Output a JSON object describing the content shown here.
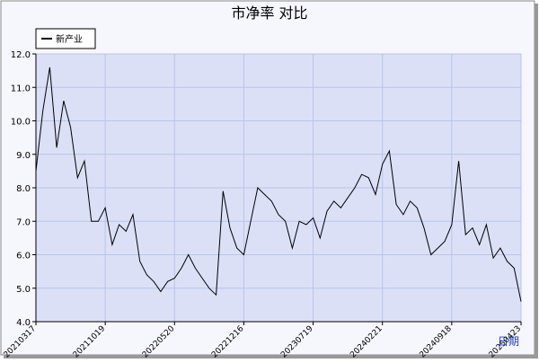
{
  "chart_data": {
    "type": "line",
    "title": "市净率  对比",
    "x_label": "日期",
    "categories": [
      "20210317",
      null,
      null,
      null,
      null,
      null,
      null,
      null,
      null,
      null,
      "20211019",
      null,
      null,
      null,
      null,
      null,
      null,
      null,
      null,
      null,
      "20220520",
      null,
      null,
      null,
      null,
      null,
      null,
      null,
      null,
      null,
      "20221216",
      null,
      null,
      null,
      null,
      null,
      null,
      null,
      null,
      null,
      "20230719",
      null,
      null,
      null,
      null,
      null,
      null,
      null,
      null,
      null,
      "20240221",
      null,
      null,
      null,
      null,
      null,
      null,
      null,
      null,
      null,
      "20240918",
      null,
      null,
      null,
      null,
      null,
      null,
      null,
      null,
      null,
      "20250423"
    ],
    "series": [
      {
        "name": "新产业",
        "color": "#000000",
        "values": [
          8.5,
          10.3,
          11.6,
          9.2,
          10.6,
          9.8,
          8.3,
          8.8,
          7.0,
          7.0,
          7.4,
          6.3,
          6.9,
          6.7,
          7.2,
          5.8,
          5.4,
          5.2,
          4.9,
          5.2,
          5.3,
          5.6,
          6.0,
          5.6,
          5.3,
          5.0,
          4.8,
          7.9,
          6.8,
          6.2,
          6.0,
          7.0,
          8.0,
          7.8,
          7.6,
          7.2,
          7.0,
          6.2,
          7.0,
          6.9,
          7.1,
          6.5,
          7.3,
          7.6,
          7.4,
          7.7,
          8.0,
          8.4,
          8.3,
          7.8,
          8.7,
          9.1,
          7.5,
          7.2,
          7.6,
          7.4,
          6.8,
          6.0,
          6.2,
          6.4,
          6.9,
          8.8,
          6.6,
          6.8,
          6.3,
          6.9,
          5.9,
          6.2,
          5.8,
          5.6,
          4.6
        ]
      }
    ],
    "ylim": [
      4,
      12
    ],
    "yticks": [
      {
        "value": 4,
        "label": "4.0"
      },
      {
        "value": 5,
        "label": "5.0"
      },
      {
        "value": 6,
        "label": "6.0"
      },
      {
        "value": 7,
        "label": "7.0"
      },
      {
        "value": 8,
        "label": "8.0"
      },
      {
        "value": 9,
        "label": "9.0"
      },
      {
        "value": 10,
        "label": "10.0"
      },
      {
        "value": 11,
        "label": "11.0"
      },
      {
        "value": 12,
        "label": "12.0"
      }
    ],
    "grid": true
  }
}
